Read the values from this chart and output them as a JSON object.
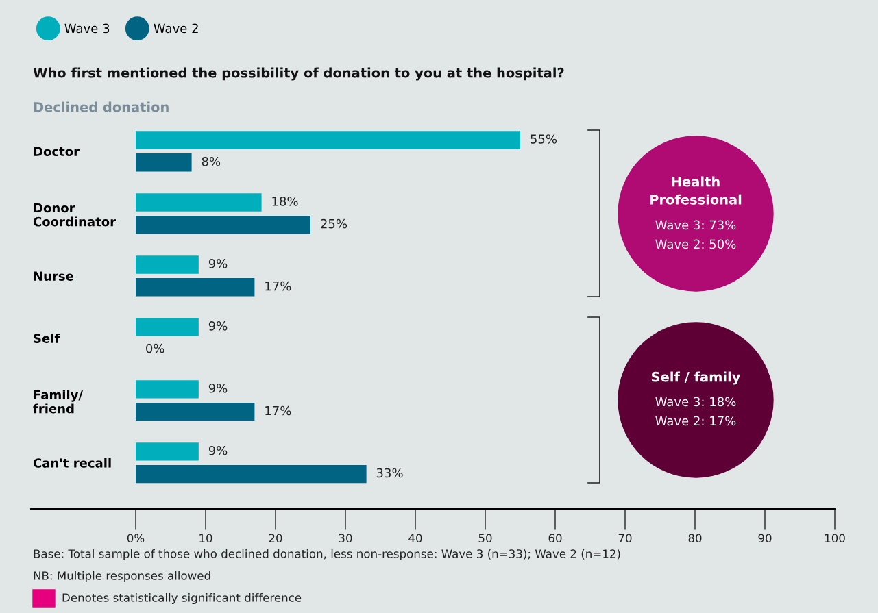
{
  "chart_data": {
    "type": "bar",
    "orientation": "horizontal",
    "title": "Who first mentioned the possibility of donation to you at the hospital?",
    "subtitle": "Declined donation",
    "categories": [
      "Doctor",
      "Donor\nCoordinator",
      "Nurse",
      "Self",
      "Family/\nfriend",
      "Can't recall"
    ],
    "series": [
      {
        "name": "Wave 3",
        "color": "#00afbb",
        "values": [
          55,
          18,
          9,
          9,
          9,
          9
        ],
        "value_labels": [
          "55%",
          "18%",
          "9%",
          "9%",
          "9%",
          "9%"
        ]
      },
      {
        "name": "Wave 2",
        "color": "#006482",
        "values": [
          8,
          25,
          17,
          0,
          17,
          33
        ],
        "value_labels": [
          "8%",
          "25%",
          "17%",
          "0%",
          "17%",
          "33%"
        ]
      }
    ],
    "xlim": [
      0,
      100
    ],
    "xticks": [
      {
        "value": 0,
        "label": "0%"
      },
      10,
      20,
      30,
      40,
      50,
      60,
      70,
      80,
      90,
      100
    ],
    "grid": false,
    "legend": "top left",
    "annotations": [
      "Health Professional",
      "Wave 3: 73%",
      "Wave 2: 50%",
      "Self / family",
      "Wave 3: 18%",
      "Wave 2: 17%",
      "Base: Total sample of those who declined donation, less non-response: Wave 3 (n=33); Wave 2 (n=12)",
      "NB: Multiple responses allowed",
      "Denotes statistically significant difference"
    ]
  }
}
